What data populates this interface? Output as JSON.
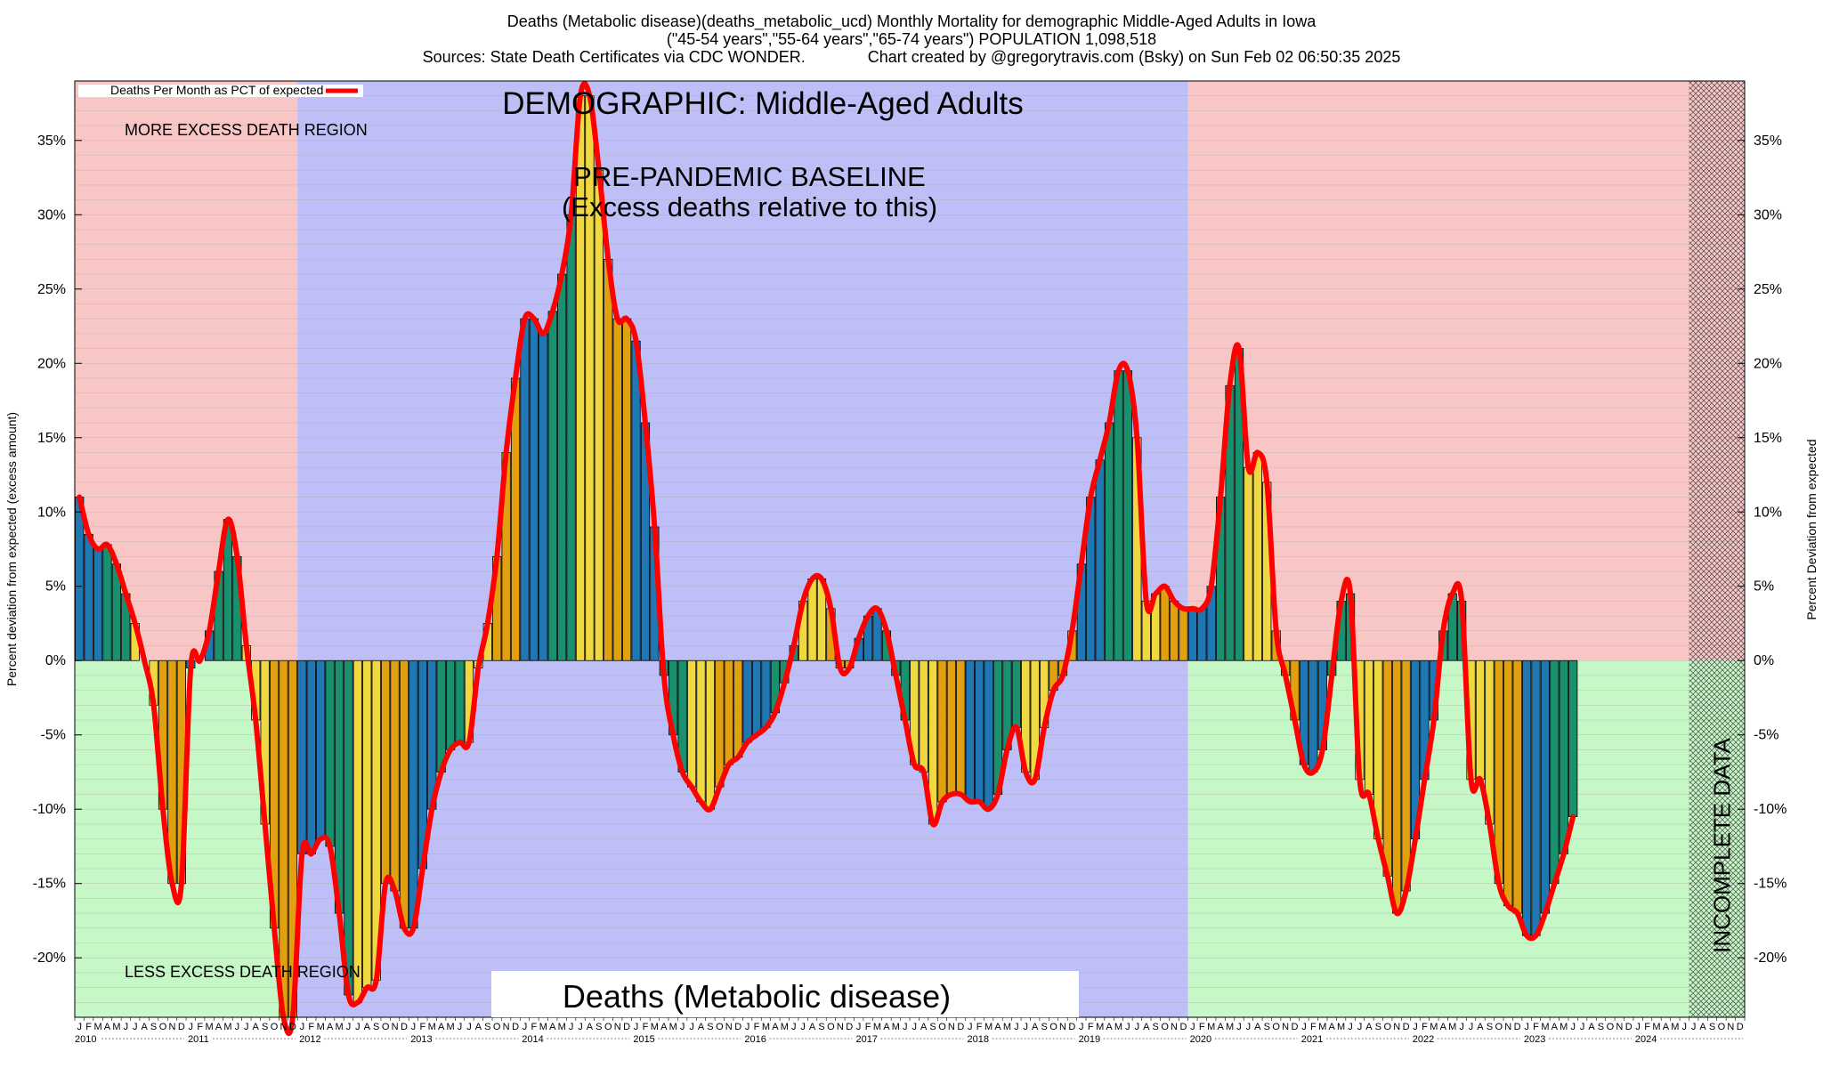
{
  "header": {
    "line1": "Deaths (Metabolic disease)(deaths_metabolic_ucd) Monthly Mortality for demographic Middle-Aged Adults in Iowa",
    "line2": "(\"45-54 years\",\"55-64 years\",\"65-74 years\") POPULATION 1,098,518",
    "line3": "Sources: State Death Certificates via CDC WONDER.              Chart created by @gregorytravis.com (Bsky) on Sun Feb 02 06:50:35 2025"
  },
  "annotations": {
    "demographic": "DEMOGRAPHIC: Middle-Aged Adults",
    "baseline_line1": "PRE-PANDEMIC BASELINE",
    "baseline_line2": "(Excess deaths relative to this)",
    "more_excess": "MORE EXCESS DEATH REGION",
    "less_excess": "LESS EXCESS DEATH REGION",
    "bottom_title": "Deaths (Metabolic disease)",
    "incomplete": "INCOMPLETE DATA",
    "legend": "Deaths Per Month as PCT of expected"
  },
  "colors": {
    "excess_region": "#f9c6c6",
    "deficit_region": "#c6f7c6",
    "baseline_region": "#bfbff7",
    "line": "#ff0000",
    "bar_palette": [
      "#1f77b4",
      "#1f77b4",
      "#1f77b4",
      "#19906e",
      "#19906e",
      "#19906e",
      "#f0d840",
      "#f0d840",
      "#f0d840",
      "#e0a010",
      "#e0a010",
      "#e0a010"
    ]
  },
  "chart_data": {
    "type": "bar",
    "title": "Deaths (Metabolic disease)(deaths_metabolic_ucd) Monthly Mortality for demographic Middle-Aged Adults in Iowa",
    "ylabel_left": "Percent deviation from expected (excess amount)",
    "ylabel_right": "Percent Deviation from expected",
    "ylim": [
      -24,
      39
    ],
    "y_ticks": [
      35,
      30,
      25,
      20,
      15,
      10,
      5,
      0,
      -5,
      -10,
      -15,
      -20
    ],
    "y_tick_labels": [
      "35%",
      "30%",
      "25%",
      "20%",
      "15%",
      "10%",
      "5%",
      "0%",
      "-5%",
      "-10%",
      "-15%",
      "-20%"
    ],
    "month_letters": [
      "J",
      "F",
      "M",
      "A",
      "M",
      "J",
      "J",
      "A",
      "S",
      "O",
      "N",
      "D"
    ],
    "years": [
      "2010",
      "2011",
      "2012",
      "2013",
      "2014",
      "2015",
      "2016",
      "2017",
      "2018",
      "2019",
      "2020",
      "2021",
      "2022",
      "2023",
      "2024"
    ],
    "start": "2010-01",
    "baseline_period": [
      "2012-01",
      "2019-12"
    ],
    "incomplete_period": [
      "2024-07",
      "2024-12"
    ],
    "grid": true,
    "legend_position": "top-left",
    "series": [
      {
        "name": "Deaths Per Month as PCT of expected",
        "values": [
          11,
          8.5,
          7.5,
          7.8,
          6.5,
          4.5,
          2.5,
          0,
          -3,
          -10,
          -15,
          -15,
          -0.5,
          0,
          2,
          6,
          9.5,
          7,
          1,
          -4,
          -11,
          -18,
          -24,
          -24,
          -13,
          -13,
          -12,
          -12.5,
          -17,
          -22.5,
          -23,
          -22,
          -21.5,
          -15,
          -15.5,
          -18,
          -18,
          -14,
          -10,
          -7.5,
          -6,
          -5.5,
          -5.5,
          -0.5,
          2.5,
          7,
          14,
          19,
          23,
          23,
          22,
          23.5,
          26,
          30,
          38,
          38,
          33,
          27,
          23,
          23,
          21.5,
          16,
          9,
          -1,
          -5,
          -7.5,
          -8.5,
          -9.5,
          -10,
          -8.5,
          -7,
          -6.5,
          -5.5,
          -5,
          -4.5,
          -3.5,
          -1.5,
          1,
          4,
          5.5,
          5.5,
          3.5,
          -0.5,
          -0.5,
          1.5,
          3,
          3.5,
          2,
          -1,
          -4,
          -7,
          -7.5,
          -11,
          -9.5,
          -9,
          -9,
          -9.5,
          -9.5,
          -10,
          -9,
          -6,
          -4.5,
          -7.5,
          -8,
          -4.5,
          -2,
          -1,
          2,
          6.5,
          11,
          13.5,
          16,
          19.5,
          19.5,
          15,
          4,
          4.5,
          5,
          4,
          3.5,
          3.5,
          3.5,
          5,
          11,
          18.5,
          21,
          13,
          14,
          12,
          2,
          -1,
          -4,
          -7,
          -7.5,
          -6,
          -1,
          4,
          4.5,
          -8,
          -9,
          -12,
          -14.5,
          -17,
          -15.5,
          -12,
          -8,
          -4,
          2,
          4.5,
          4,
          -8,
          -8,
          -11,
          -15,
          -16.5,
          -17,
          -18.5,
          -18.5,
          -17,
          -15,
          -13,
          -10.5
        ]
      }
    ]
  }
}
